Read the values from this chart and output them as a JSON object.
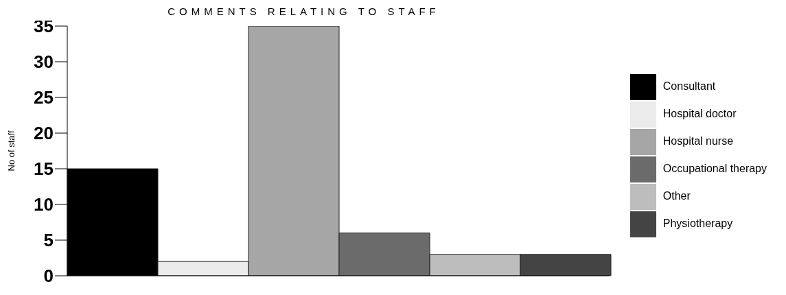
{
  "chart_data": {
    "type": "bar",
    "title": "COMMENTS RELATING TO STAFF",
    "ylabel": "No of staff",
    "categories": [
      null
    ],
    "series": [
      {
        "name": "Consultant",
        "color": "#000000",
        "values": [
          15
        ]
      },
      {
        "name": "Hospital doctor",
        "color": "#ebebeb",
        "values": [
          2
        ]
      },
      {
        "name": "Hospital nurse",
        "color": "#a6a6a6",
        "values": [
          35
        ]
      },
      {
        "name": "Occupational therapy",
        "color": "#6b6b6b",
        "values": [
          6
        ]
      },
      {
        "name": "Other",
        "color": "#bdbdbd",
        "values": [
          3
        ]
      },
      {
        "name": "Physiotherapy",
        "color": "#444444",
        "values": [
          3
        ]
      }
    ],
    "ylim": [
      0,
      35
    ],
    "yticks": [
      0,
      5,
      10,
      15,
      20,
      25,
      30,
      35
    ],
    "grid": false,
    "legend": "right"
  }
}
